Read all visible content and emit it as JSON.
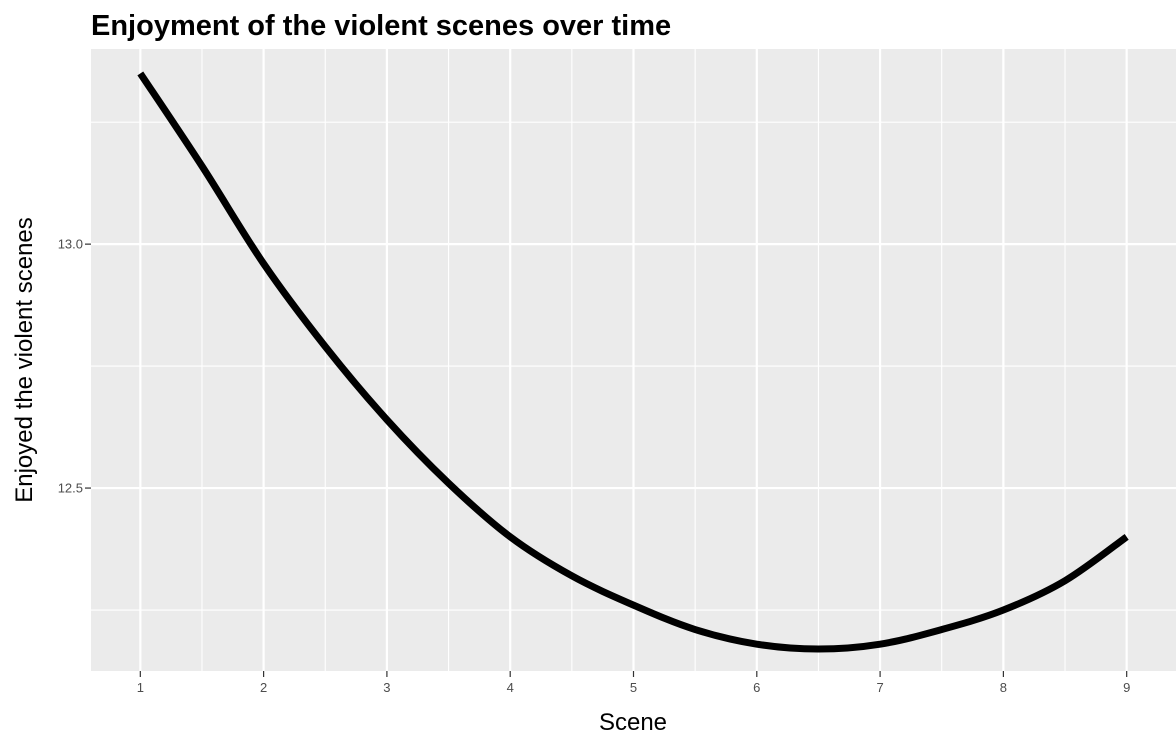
{
  "chart_data": {
    "type": "line",
    "title": "Enjoyment of the violent scenes over time",
    "xlabel": "Scene",
    "ylabel": "Enjoyed the violent scenes",
    "xlim": [
      0.6,
      9.4
    ],
    "ylim": [
      12.125,
      13.4
    ],
    "x_ticks": [
      1,
      2,
      3,
      4,
      5,
      6,
      7,
      8,
      9
    ],
    "x_tick_labels": [
      "1",
      "2",
      "3",
      "4",
      "5",
      "6",
      "7",
      "8",
      "9"
    ],
    "y_ticks": [
      12.5,
      13.0
    ],
    "y_tick_labels": [
      "12.5",
      "13.0"
    ],
    "x_minor_ticks": [
      1.5,
      2.5,
      3.5,
      4.5,
      5.5,
      6.5,
      7.5,
      8.5
    ],
    "y_minor_ticks": [
      12.25,
      12.75,
      13.25
    ],
    "grid": true,
    "theme": "ggplot2-grey",
    "panel_background": "#ebebeb",
    "grid_color": "#ffffff",
    "line_color": "#000000",
    "series": [
      {
        "x": [
          1,
          1.5,
          2,
          2.5,
          3,
          3.5,
          4,
          4.5,
          5,
          5.5,
          6,
          6.5,
          7,
          7.5,
          8,
          8.5,
          9
        ],
        "values": [
          13.35,
          13.16,
          12.96,
          12.79,
          12.64,
          12.51,
          12.4,
          12.32,
          12.26,
          12.21,
          12.18,
          12.17,
          12.18,
          12.21,
          12.25,
          12.31,
          12.4
        ]
      }
    ]
  }
}
